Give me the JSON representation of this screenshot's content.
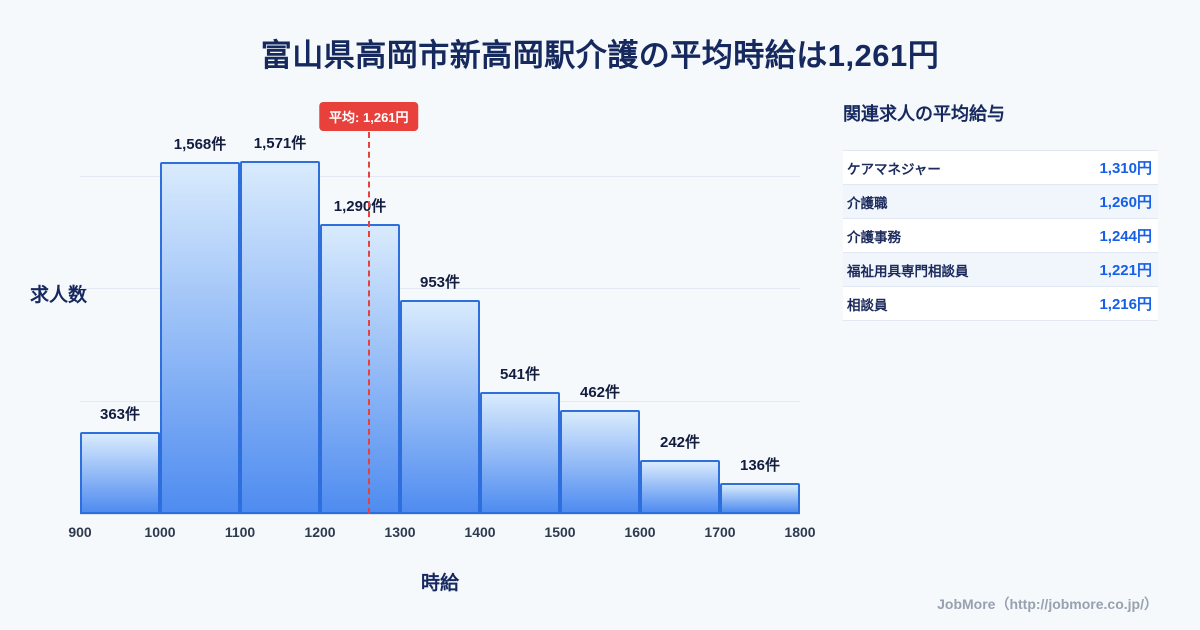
{
  "title": "富山県高岡市新高岡駅介護の平均時給は1,261円",
  "chart_data": {
    "type": "bar",
    "title": "富山県高岡市新高岡駅介護の平均時給は1,261円",
    "xlabel": "時給",
    "ylabel": "求人数",
    "bin_edges": [
      900,
      1000,
      1100,
      1200,
      1300,
      1400,
      1500,
      1600,
      1700,
      1800
    ],
    "categories": [
      "900-1000",
      "1000-1100",
      "1100-1200",
      "1200-1300",
      "1300-1400",
      "1400-1500",
      "1500-1600",
      "1600-1700",
      "1700-1800"
    ],
    "values": [
      363,
      1568,
      1571,
      1290,
      953,
      541,
      462,
      242,
      136
    ],
    "value_labels": [
      "363件",
      "1,568件",
      "1,571件",
      "1,290件",
      "953件",
      "541件",
      "462件",
      "242件",
      "136件"
    ],
    "average": 1261,
    "average_label": "平均: 1,261円",
    "ylim": [
      0,
      1850
    ],
    "gridlines": [
      500,
      1000,
      1500
    ],
    "grid": true,
    "legend": "none",
    "colors": {
      "bar_top": "#d9ebfd",
      "bar_bottom": "#4f8cf0",
      "bar_border": "#2f6fdd",
      "average_line": "#e8413c",
      "title_navy": "#16295f"
    }
  },
  "panel": {
    "heading": "関連求人の平均給与",
    "rows": [
      {
        "label": "ケアマネジャー",
        "value": "1,310円"
      },
      {
        "label": "介護職",
        "value": "1,260円"
      },
      {
        "label": "介護事務",
        "value": "1,244円"
      },
      {
        "label": "福祉用具専門相談員",
        "value": "1,221円"
      },
      {
        "label": "相談員",
        "value": "1,216円"
      }
    ]
  },
  "footer": {
    "credit": "JobMore（http://jobmore.co.jp/）"
  }
}
